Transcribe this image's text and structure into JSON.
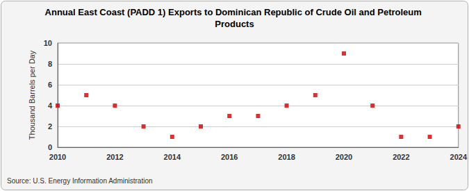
{
  "chart_data": {
    "type": "scatter",
    "title": "Annual East Coast (PADD 1) Exports to Dominican Republic of Crude Oil and Petroleum Products",
    "y_label": "Thousand Barrels per Day",
    "source": "Source: U.S. Energy Information Administration",
    "x": [
      2010,
      2011,
      2012,
      2013,
      2014,
      2015,
      2016,
      2017,
      2018,
      2019,
      2020,
      2021,
      2022,
      2023,
      2024
    ],
    "values": [
      4,
      5,
      4,
      2,
      1,
      2,
      3,
      3,
      4,
      5,
      9,
      4,
      1,
      1,
      2
    ],
    "color": "#cc0000",
    "marker": "square",
    "xlim": [
      2010,
      2024
    ],
    "xticks": [
      2010,
      2012,
      2014,
      2016,
      2018,
      2020,
      2022,
      2024
    ],
    "ylim": [
      0,
      10
    ],
    "yticks": [
      0,
      2,
      4,
      6,
      8,
      10
    ],
    "grid": true
  }
}
